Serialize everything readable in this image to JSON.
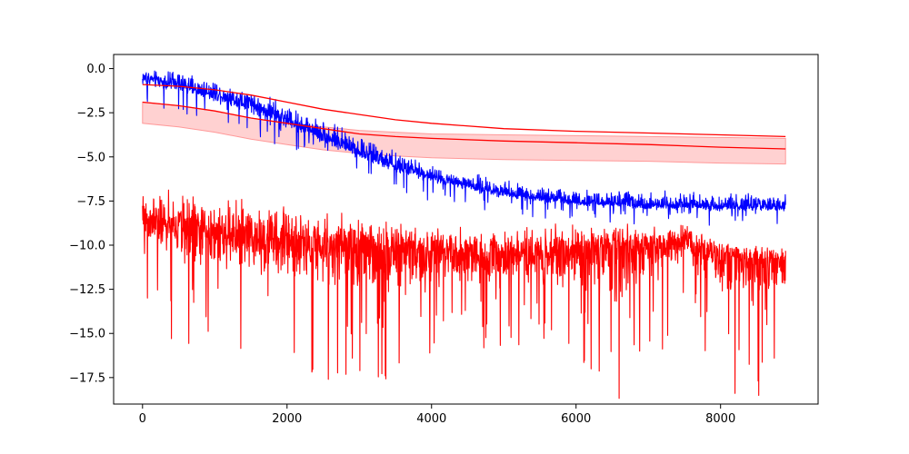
{
  "chart_data": {
    "type": "line",
    "title": "",
    "xlabel": "",
    "ylabel": "",
    "xlim": [
      -400,
      9350
    ],
    "ylim": [
      -19.0,
      0.8
    ],
    "grid": false,
    "x_ticks": [
      0,
      2000,
      4000,
      6000,
      8000
    ],
    "x_tick_labels": [
      "0",
      "2000",
      "4000",
      "6000",
      "8000"
    ],
    "y_ticks": [
      0.0,
      -2.5,
      -5.0,
      -7.5,
      -10.0,
      -12.5,
      -15.0,
      -17.5
    ],
    "y_tick_labels": [
      "0.0",
      "−2.5",
      "−5.0",
      "−7.5",
      "−10.0",
      "−12.5",
      "−15.0",
      "−17.5"
    ],
    "colors": {
      "blue_series": "#0000ff",
      "red_series": "#ff0000",
      "band_fill": "#ffcccc",
      "band_edge": "#ff9999"
    },
    "series": [
      {
        "color": "#0000ff",
        "style": "noisy",
        "x": [
          0,
          500,
          1000,
          1500,
          2000,
          2500,
          3000,
          3500,
          4000,
          4500,
          5000,
          5500,
          6000,
          6500,
          7000,
          7500,
          8000,
          8500,
          8900
        ],
        "center": [
          -0.5,
          -0.9,
          -1.4,
          -2.1,
          -2.9,
          -3.8,
          -4.7,
          -5.5,
          -6.1,
          -6.6,
          -7.0,
          -7.3,
          -7.5,
          -7.6,
          -7.7,
          -7.7,
          -7.8,
          -7.8,
          -7.8
        ],
        "upper": [
          0.1,
          -0.1,
          -0.5,
          -1.0,
          -1.8,
          -2.7,
          -3.6,
          -4.5,
          -5.2,
          -5.8,
          -6.2,
          -6.5,
          -6.7,
          -6.8,
          -6.8,
          -6.9,
          -6.9,
          -6.9,
          -7.0
        ],
        "lower": [
          -2.0,
          -2.1,
          -2.7,
          -3.3,
          -4.2,
          -5.0,
          -5.8,
          -6.6,
          -7.1,
          -7.6,
          -7.9,
          -8.1,
          -8.3,
          -8.4,
          -8.5,
          -8.5,
          -8.6,
          -8.6,
          -8.7
        ]
      },
      {
        "color": "#ff0000",
        "style": "noisy",
        "x": [
          0,
          500,
          1000,
          1500,
          2000,
          2500,
          3000,
          3500,
          4000,
          4500,
          5000,
          5500,
          6000,
          6500,
          7000,
          7500,
          8000,
          8500,
          8900
        ],
        "center": [
          -8.5,
          -9.0,
          -9.3,
          -9.6,
          -9.8,
          -10.0,
          -10.1,
          -10.2,
          -10.3,
          -10.4,
          -10.4,
          -10.5,
          -10.3,
          -10.0,
          -10.0,
          -9.7,
          -10.6,
          -10.9,
          -10.9
        ],
        "upper": [
          -6.5,
          -6.7,
          -6.7,
          -7.2,
          -7.5,
          -7.9,
          -8.1,
          -8.6,
          -8.7,
          -8.9,
          -8.9,
          -8.6,
          -8.5,
          -8.6,
          -8.7,
          -8.6,
          -9.6,
          -9.8,
          -9.5
        ],
        "lower": [
          -12.2,
          -15.6,
          -15.2,
          -15.6,
          -15.5,
          -17.5,
          -17.0,
          -17.5,
          -16.5,
          -15.9,
          -15.4,
          -15.6,
          -15.7,
          -18.6,
          -17.3,
          -12.7,
          -17.8,
          -18.5,
          -16.8
        ]
      },
      {
        "color": "#ff0000",
        "style": "smooth",
        "x": [
          0,
          500,
          1000,
          1500,
          2000,
          2500,
          3000,
          3500,
          4000,
          5000,
          6000,
          7000,
          8000,
          8900
        ],
        "y": [
          -0.9,
          -1.0,
          -1.2,
          -1.5,
          -1.9,
          -2.3,
          -2.6,
          -2.9,
          -3.1,
          -3.4,
          -3.55,
          -3.65,
          -3.75,
          -3.85
        ]
      },
      {
        "color": "#ff0000",
        "style": "smooth",
        "x": [
          0,
          500,
          1000,
          1500,
          2000,
          2500,
          3000,
          3500,
          4000,
          5000,
          6000,
          7000,
          8000,
          8900
        ],
        "y": [
          -1.9,
          -2.1,
          -2.4,
          -2.8,
          -3.1,
          -3.4,
          -3.7,
          -3.85,
          -3.95,
          -4.1,
          -4.2,
          -4.3,
          -4.45,
          -4.55
        ]
      }
    ],
    "band": {
      "color": "#ff0000",
      "x": [
        0,
        500,
        1000,
        1500,
        2000,
        2500,
        3000,
        3500,
        4000,
        5000,
        6000,
        7000,
        8000,
        8900
      ],
      "upper": [
        -1.9,
        -2.1,
        -2.4,
        -2.8,
        -3.1,
        -3.3,
        -3.5,
        -3.6,
        -3.7,
        -3.75,
        -3.8,
        -3.85,
        -3.9,
        -3.95
      ],
      "lower": [
        -3.1,
        -3.3,
        -3.6,
        -4.0,
        -4.3,
        -4.6,
        -4.8,
        -4.95,
        -5.05,
        -5.15,
        -5.2,
        -5.25,
        -5.35,
        -5.4
      ]
    }
  }
}
